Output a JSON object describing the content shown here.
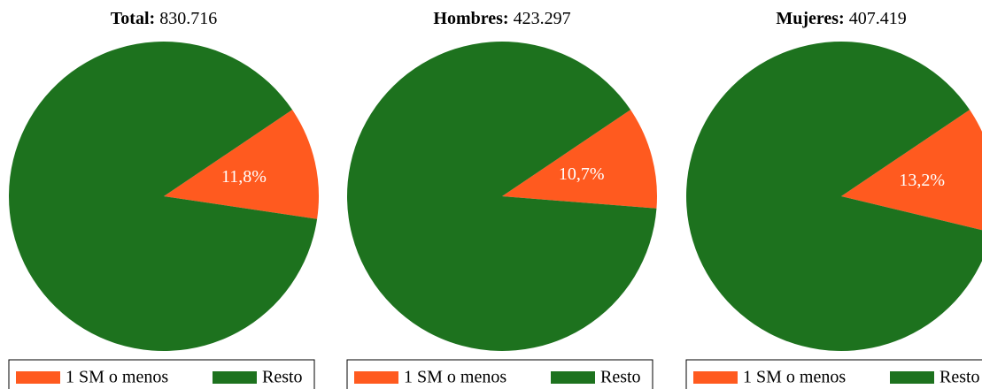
{
  "chart_data": [
    {
      "type": "pie",
      "title_label": "Total:",
      "title_value": "830.716",
      "categories": [
        "1 SM o menos",
        "Resto"
      ],
      "values": [
        11.8,
        88.2
      ],
      "value_labels": [
        "11,8%",
        null
      ],
      "colors": [
        "#ff5a1f",
        "#1d721e"
      ]
    },
    {
      "type": "pie",
      "title_label": "Hombres:",
      "title_value": "423.297",
      "categories": [
        "1 SM o menos",
        "Resto"
      ],
      "values": [
        10.7,
        89.3
      ],
      "value_labels": [
        "10,7%",
        null
      ],
      "colors": [
        "#ff5a1f",
        "#1d721e"
      ]
    },
    {
      "type": "pie",
      "title_label": "Mujeres:",
      "title_value": "407.419",
      "categories": [
        "1 SM o menos",
        "Resto"
      ],
      "values": [
        13.2,
        86.8
      ],
      "value_labels": [
        "13,2%",
        null
      ],
      "colors": [
        "#ff5a1f",
        "#1d721e"
      ]
    }
  ]
}
